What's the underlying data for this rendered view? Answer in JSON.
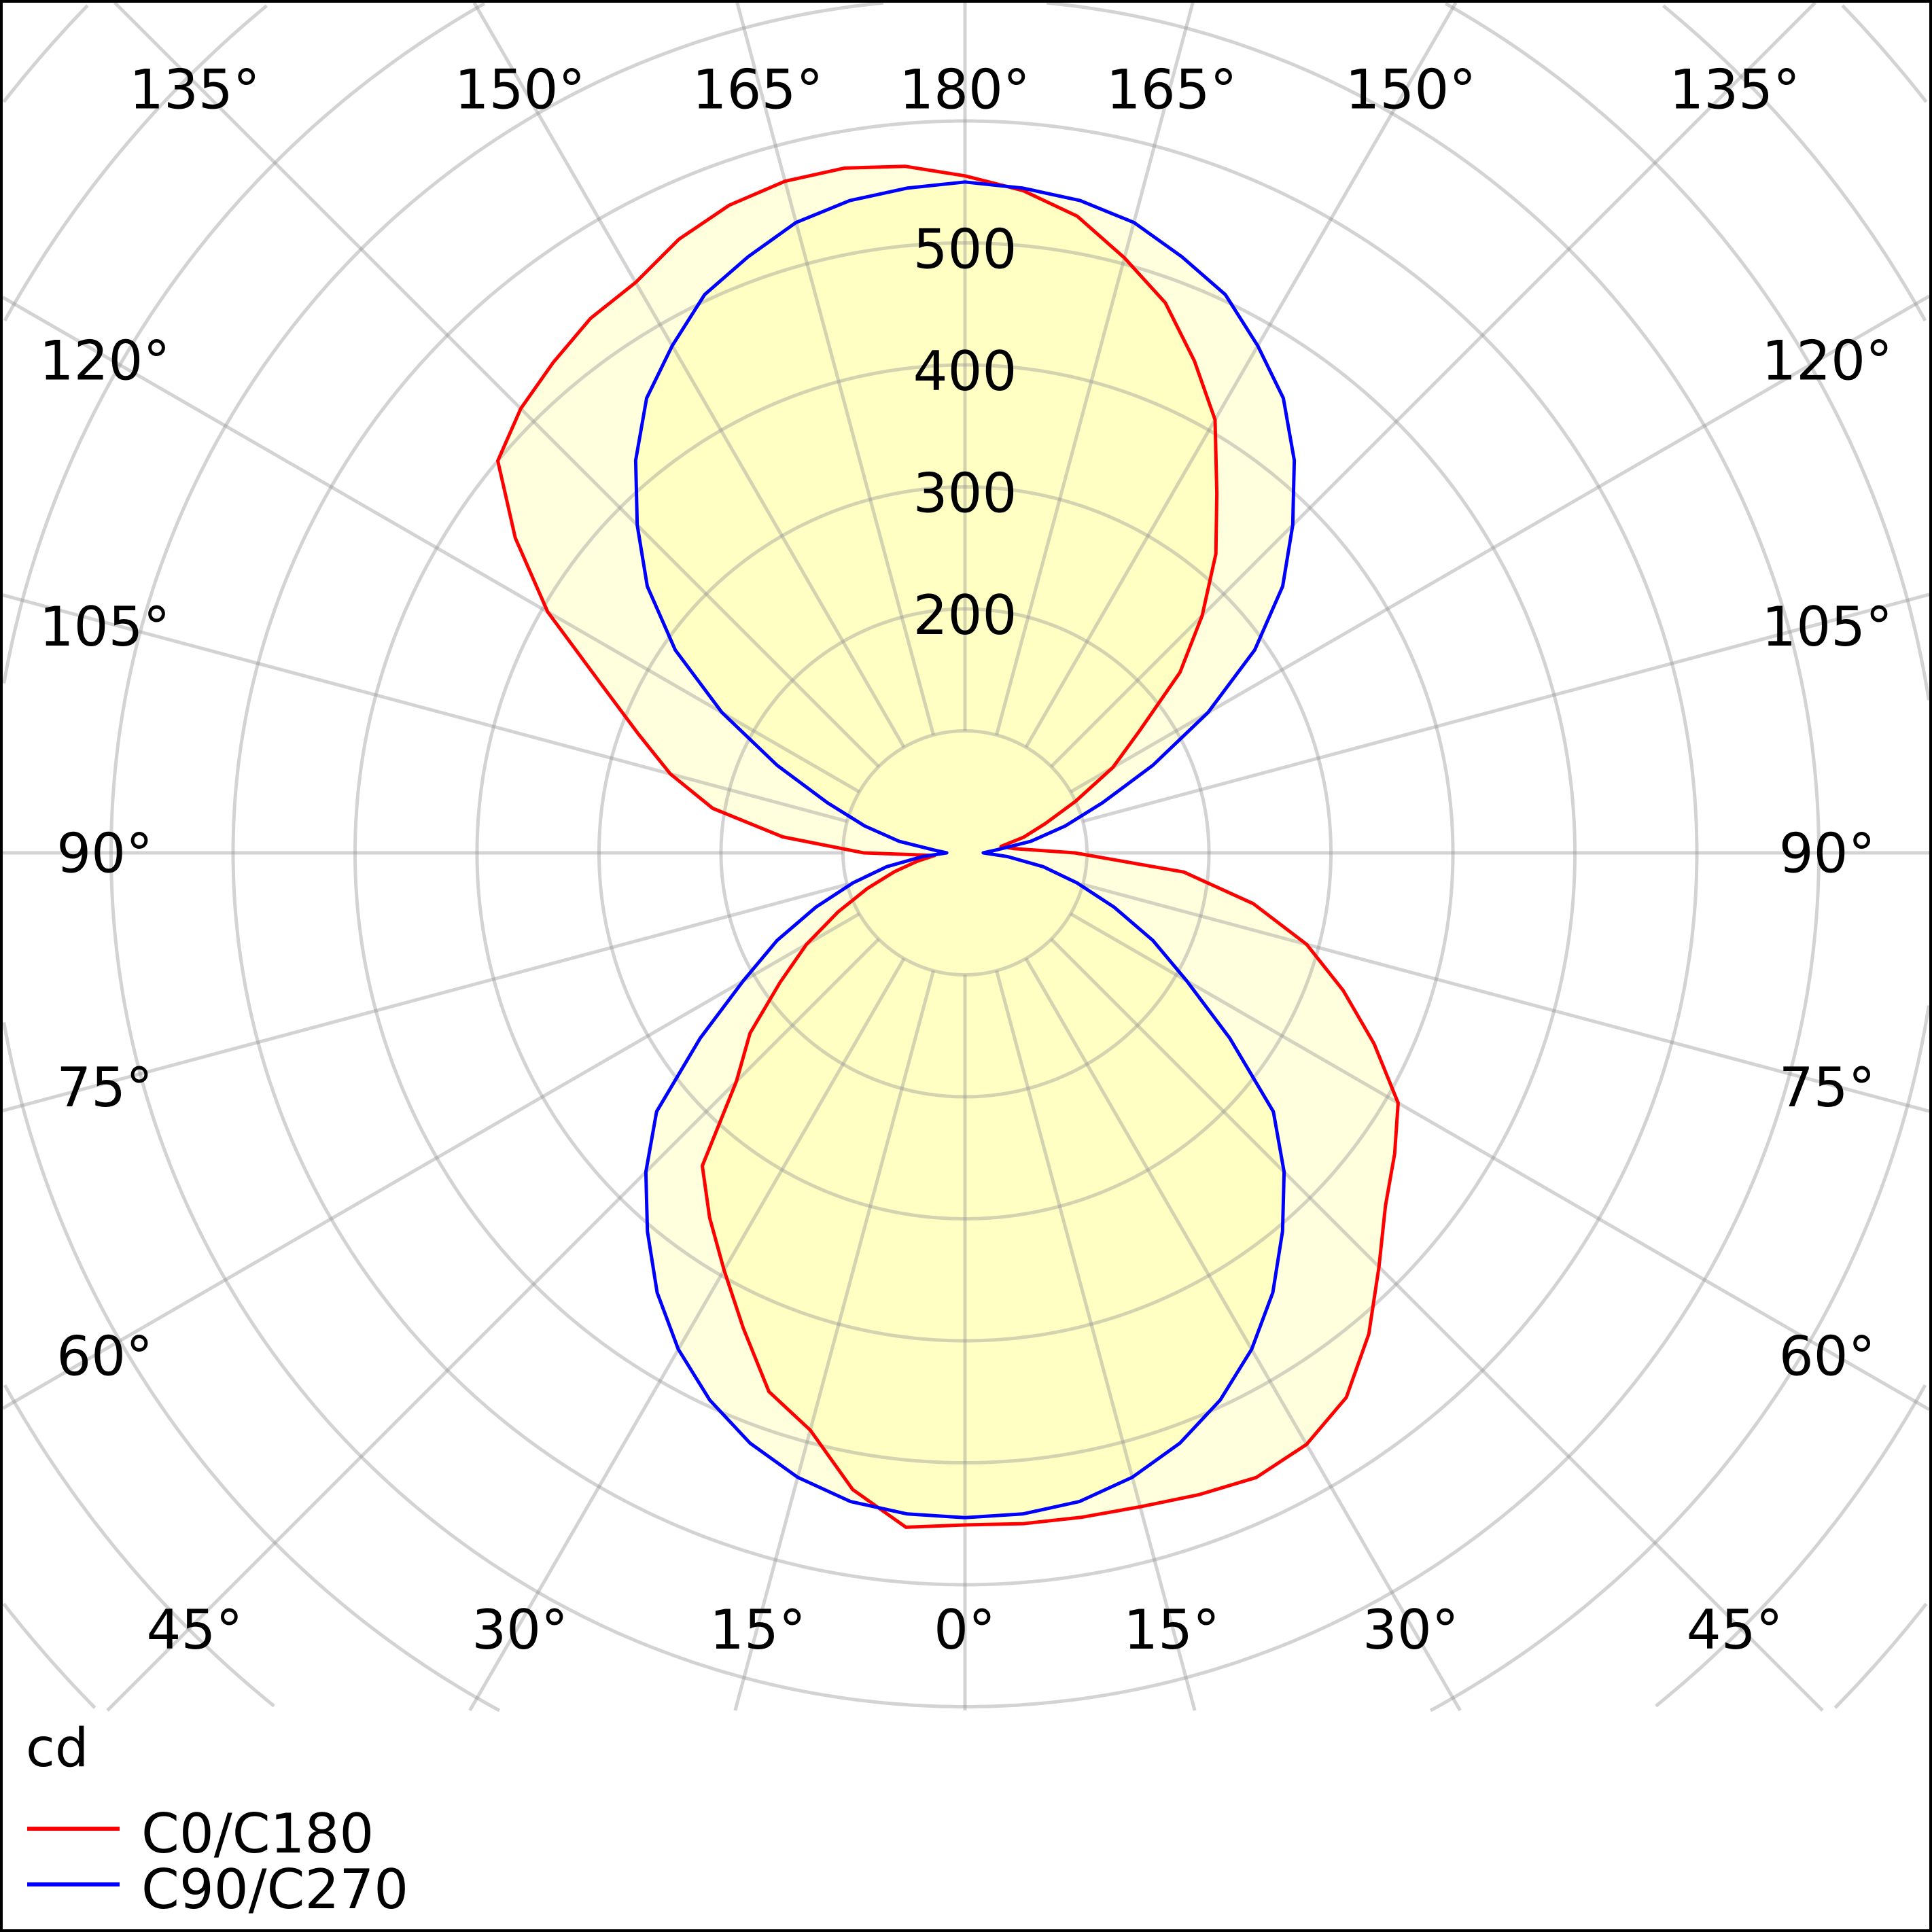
{
  "chart_data": {
    "type": "polar",
    "title": "",
    "unit": "cd",
    "radial_ticks": [
      200,
      300,
      400,
      500
    ],
    "angle_labels_top": [
      "135°",
      "150°",
      "165°",
      "180°",
      "165°",
      "150°",
      "135°"
    ],
    "angle_labels_left": [
      "120°",
      "105°",
      "90°",
      "75°",
      "60°"
    ],
    "angle_labels_right": [
      "120°",
      "105°",
      "90°",
      "75°",
      "60°"
    ],
    "angle_labels_bottom": [
      "45°",
      "30°",
      "15°",
      "0°",
      "15°",
      "30°",
      "45°"
    ],
    "gamma": [
      0,
      5,
      10,
      15,
      20,
      25,
      30,
      35,
      40,
      45,
      50,
      55,
      60,
      65,
      70,
      75,
      80,
      85,
      90,
      95,
      100,
      105,
      110,
      115,
      120,
      125,
      130,
      135,
      140,
      145,
      150,
      155,
      160,
      165,
      170,
      175,
      180
    ],
    "series": [
      {
        "name": "C0/C180",
        "color": "#ff0000",
        "C0": [
          551,
          552,
          553,
          555,
          560,
          565,
          560,
          545,
          515,
          480,
          450,
          430,
          410,
          370,
          330,
          290,
          240,
          180,
          90,
          40,
          30,
          50,
          70,
          100,
          140,
          175,
          230,
          275,
          320,
          360,
          410,
          445,
          480,
          505,
          530,
          545,
          555
        ],
        "C180": [
          551,
          555,
          530,
          490,
          470,
          430,
          395,
          365,
          335,
          265,
          230,
          185,
          150,
          115,
          85,
          60,
          40,
          25,
          83,
          150,
          210,
          250,
          285,
          330,
          395,
          450,
          500,
          515,
          525,
          535,
          540,
          555,
          565,
          570,
          570,
          565,
          555
        ]
      },
      {
        "name": "C90/C270",
        "color": "#0000ff",
        "C90": [
          545,
          544,
          540,
          530,
          515,
          495,
          470,
          440,
          405,
          370,
          330,
          265,
          210,
          170,
          130,
          95,
          65,
          35,
          15,
          25,
          55,
          85,
          120,
          170,
          230,
          290,
          340,
          380,
          420,
          455,
          480,
          505,
          520,
          535,
          543,
          547,
          550
        ],
        "C270": [
          545,
          544,
          540,
          530,
          515,
          495,
          470,
          440,
          405,
          370,
          330,
          265,
          210,
          170,
          130,
          95,
          65,
          35,
          15,
          25,
          55,
          85,
          120,
          170,
          230,
          290,
          340,
          380,
          420,
          455,
          480,
          505,
          520,
          535,
          543,
          547,
          550
        ]
      }
    ],
    "legend": {
      "placement": "bottom-left",
      "unit_label": "cd",
      "entries": [
        "C0/C180",
        "C90/C270"
      ]
    },
    "grid": true
  }
}
